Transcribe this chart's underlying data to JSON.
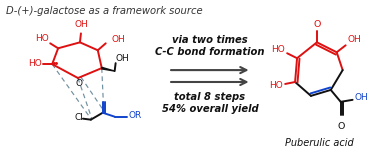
{
  "title": "D-(+)-galactose as a framework source",
  "title_color": "#333333",
  "title_fontsize": 7.2,
  "arrow_text1": "via two times",
  "arrow_text2": "C-C bond formation",
  "arrow_text3": "total 8 steps",
  "arrow_text4": "54% overall yield",
  "product_label": "Puberulic acid",
  "bg_color": "#ffffff",
  "red_color": "#dd1111",
  "blue_color": "#1144cc",
  "black_color": "#111111",
  "arrow_color": "#444444",
  "dashed_color": "#7090a0",
  "arrow_lw": 1.5,
  "struct_lw": 1.4
}
